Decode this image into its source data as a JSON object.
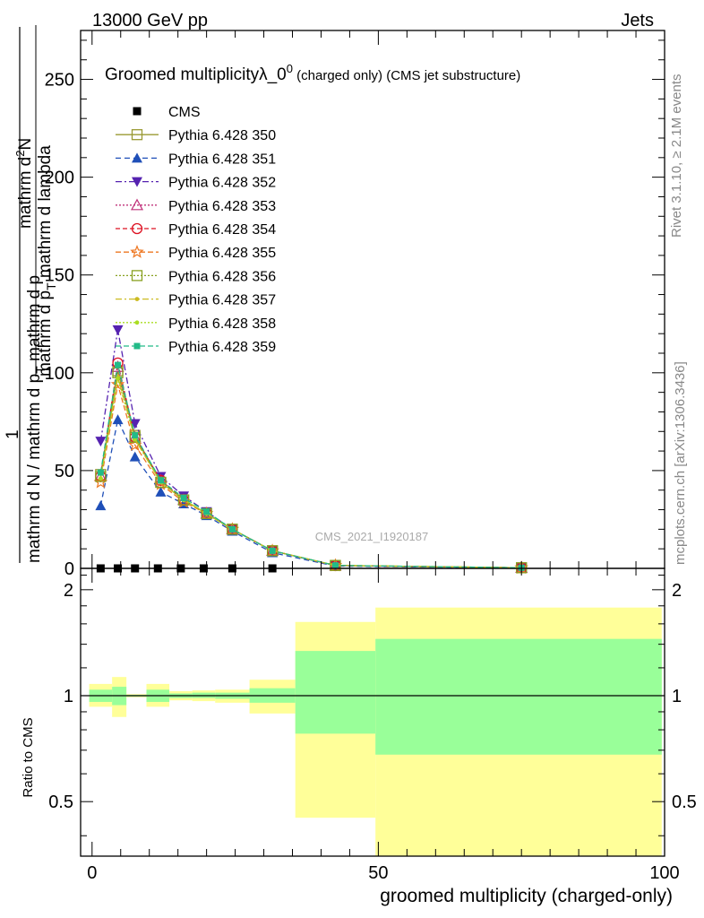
{
  "header": {
    "left": "13000 GeV pp",
    "right": "Jets"
  },
  "title": {
    "main": "Groomed multiplicityλ_0",
    "sup": "0",
    "suffix": " (charged only) (CMS jet substructure)"
  },
  "side_labels": {
    "rivet": "Rivet 3.1.10, ≥ 2.1M events",
    "mcplots": "mcplots.cern.ch [arXiv:1306.3436]"
  },
  "watermark": "CMS_2021_I1920187",
  "ylabel_main": {
    "num": "mathrm d^{2}N",
    "num_plain": "mathrm d",
    "num_sup": "2",
    "num_tail": "N",
    "den1": "mathrm d p",
    "den1_sub": "T",
    "den2": " mathrm d lambda",
    "one": "1",
    "den_left": "mathrm d N / mathrm d p",
    "den_left_sub": "T",
    "den_left_tail": " mathrm d p"
  },
  "ylabel_ratio": "Ratio to CMS",
  "xlabel": "groomed multiplicity (charged-only)",
  "chart_data": {
    "type": "line",
    "xlim": [
      -2,
      100
    ],
    "ylim": [
      0,
      275
    ],
    "x_ticks": [
      0,
      50,
      100
    ],
    "y_ticks": [
      0,
      50,
      100,
      150,
      200,
      250
    ],
    "ratio_ylim": [
      0.35,
      2.3
    ],
    "ratio_ticks": [
      0.5,
      1,
      2
    ],
    "ratio_tick_labels": [
      "0.5",
      "1",
      "2"
    ],
    "x": [
      1.5,
      4.5,
      7.5,
      12,
      16,
      20,
      24.5,
      31.5,
      42.5,
      75
    ],
    "data": {
      "name": "CMS",
      "x": [
        1.5,
        4.5,
        7.5,
        11.5,
        15.5,
        19.5,
        24.5,
        31.5
      ],
      "values": [
        0,
        0,
        0,
        0,
        0,
        0,
        0,
        0
      ],
      "color": "#000000"
    },
    "series": [
      {
        "name": "Pythia 6.428 350",
        "color": "#999933",
        "dash": "",
        "marker": "square-open",
        "values": [
          48,
          101,
          68,
          44,
          35,
          28,
          20,
          9,
          1.5,
          0.3
        ]
      },
      {
        "name": "Pythia 6.428 351",
        "color": "#1f4fb8",
        "dash": "6,4",
        "marker": "triangle-up",
        "values": [
          32,
          76,
          57,
          39,
          33,
          27,
          19,
          8,
          1.2,
          0.2
        ]
      },
      {
        "name": "Pythia 6.428 352",
        "color": "#5522b0",
        "dash": "7,3,2,3",
        "marker": "triangle-down",
        "values": [
          65,
          122,
          74,
          47,
          37,
          29,
          20,
          9,
          1.4,
          0.3
        ]
      },
      {
        "name": "Pythia 6.428 353",
        "color": "#c0307a",
        "dash": "2,2",
        "marker": "triangle-open",
        "values": [
          47,
          103,
          67,
          45,
          35,
          28,
          20,
          9,
          1.4,
          0.3
        ]
      },
      {
        "name": "Pythia 6.428 354",
        "color": "#dd1122",
        "dash": "5,3",
        "marker": "circle-open",
        "values": [
          47,
          105,
          67,
          45,
          35,
          28,
          20,
          9,
          1.4,
          0.3
        ]
      },
      {
        "name": "Pythia 6.428 355",
        "color": "#ee7722",
        "dash": "6,3",
        "marker": "star-open",
        "values": [
          44,
          94,
          63,
          43,
          34,
          28,
          20,
          9,
          1.5,
          0.3
        ]
      },
      {
        "name": "Pythia 6.428 356",
        "color": "#88a020",
        "dash": "2,2",
        "marker": "square-open",
        "values": [
          47,
          100,
          67,
          44,
          35,
          28,
          20,
          9,
          1.5,
          0.3
        ]
      },
      {
        "name": "Pythia 6.428 357",
        "color": "#ccbb22",
        "dash": "7,3,2,3",
        "marker": "dot",
        "values": [
          46,
          98,
          66,
          44,
          35,
          28,
          20,
          9,
          1.5,
          0.3
        ]
      },
      {
        "name": "Pythia 6.428 358",
        "color": "#aadd22",
        "dash": "2,2",
        "marker": "dot",
        "values": [
          46,
          97,
          66,
          44,
          35,
          28,
          20,
          9,
          1.5,
          0.3
        ]
      },
      {
        "name": "Pythia 6.428 359",
        "color": "#22bb88",
        "dash": "6,3",
        "marker": "square-filled",
        "values": [
          49,
          104,
          68,
          45,
          36,
          29,
          20,
          9,
          1.5,
          0.3
        ]
      }
    ],
    "ratio_bands": [
      {
        "x0": -0.5,
        "x1": 3.5,
        "yellow": [
          0.93,
          1.08
        ],
        "green": [
          0.96,
          1.04
        ]
      },
      {
        "x0": 3.5,
        "x1": 6,
        "yellow": [
          0.87,
          1.13
        ],
        "green": [
          0.94,
          1.06
        ]
      },
      {
        "x0": 6,
        "x1": 9.5,
        "yellow": [
          0.99,
          1.01
        ],
        "green": [
          0.995,
          1.005
        ]
      },
      {
        "x0": 9.5,
        "x1": 13.5,
        "yellow": [
          0.93,
          1.08
        ],
        "green": [
          0.96,
          1.04
        ]
      },
      {
        "x0": 13.5,
        "x1": 17.5,
        "yellow": [
          0.97,
          1.03
        ],
        "green": [
          0.985,
          1.015
        ]
      },
      {
        "x0": 17.5,
        "x1": 21.5,
        "yellow": [
          0.965,
          1.035
        ],
        "green": [
          0.985,
          1.02
        ]
      },
      {
        "x0": 21.5,
        "x1": 27.5,
        "yellow": [
          0.955,
          1.04
        ],
        "green": [
          0.98,
          1.02
        ]
      },
      {
        "x0": 27.5,
        "x1": 35.5,
        "yellow": [
          0.89,
          1.11
        ],
        "green": [
          0.955,
          1.05
        ]
      },
      {
        "x0": 35.5,
        "x1": 49.5,
        "yellow": [
          0.45,
          1.62
        ],
        "green": [
          0.78,
          1.34
        ]
      },
      {
        "x0": 49.5,
        "x1": 99.5,
        "yellow": [
          0.35,
          1.78
        ],
        "green": [
          0.68,
          1.45
        ]
      }
    ]
  }
}
